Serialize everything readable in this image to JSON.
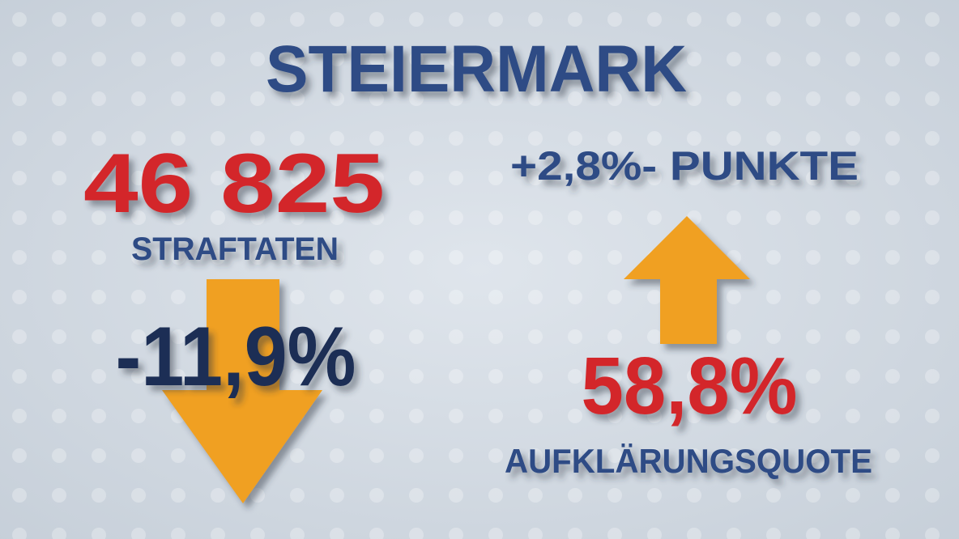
{
  "title": "STEIERMARK",
  "left": {
    "value": "46 825",
    "label": "STRAFTATEN",
    "change": "-11,9%"
  },
  "right": {
    "change": "+2,8%- PUNKTE",
    "value": "58,8%",
    "label": "AUFKLÄRUNGSQUOTE"
  }
}
